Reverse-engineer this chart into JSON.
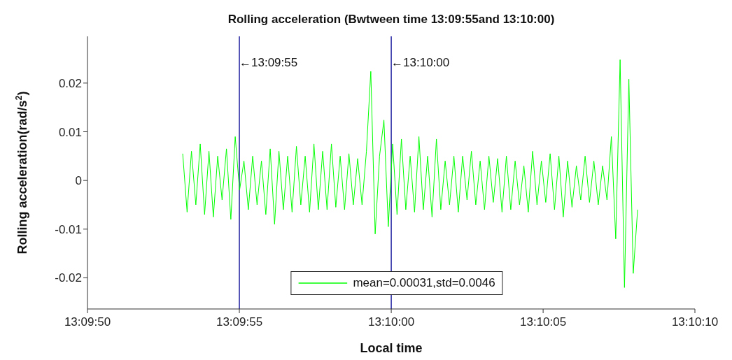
{
  "chart_data": {
    "type": "line",
    "title": "Rolling acceleration (Bwtween time 13:09:55and 13:10:00)",
    "xlabel": "Local time",
    "ylabel": "Rolling acceleration(rad/s$^{2}$)",
    "x": [
      13.16476,
      13.1648,
      13.16484,
      13.16488,
      13.16492,
      13.16496,
      13.165,
      13.16504,
      13.16508,
      13.16512,
      13.16516,
      13.1652,
      13.16524,
      13.16528,
      13.16532,
      13.16536,
      13.1654,
      13.16544,
      13.16548,
      13.16552,
      13.16556,
      13.1656,
      13.16564,
      13.16568,
      13.16572,
      13.16576,
      13.1658,
      13.16584,
      13.16588,
      13.16592,
      13.16596,
      13.166,
      13.16604,
      13.16608,
      13.16612,
      13.16616,
      13.1662,
      13.16624,
      13.16628,
      13.16632,
      13.16636,
      13.1664,
      13.16644,
      13.16648,
      13.16652,
      13.16656,
      13.1666,
      13.16664,
      13.16668,
      13.16672,
      13.16676,
      13.1668,
      13.16684,
      13.16688,
      13.16692,
      13.16696,
      13.167,
      13.16704,
      13.16708,
      13.16712,
      13.16716,
      13.1672,
      13.16724,
      13.16728,
      13.16732,
      13.16736,
      13.1674,
      13.16744,
      13.16748,
      13.16752,
      13.16756,
      13.1676,
      13.16764,
      13.16768,
      13.16772,
      13.16776,
      13.1678,
      13.16784,
      13.16788,
      13.16792,
      13.16796,
      13.168,
      13.16804,
      13.16808,
      13.16812,
      13.16816,
      13.1682,
      13.16824,
      13.16828,
      13.16832,
      13.16836,
      13.1684,
      13.16844,
      13.16848,
      13.16852,
      13.16856,
      13.1686,
      13.16864,
      13.16868,
      13.16872,
      13.16876,
      13.1688,
      13.16884,
      13.16888,
      13.16892
    ],
    "series": [
      {
        "name": "mean=0.00031,std=0.0046",
        "color": "#00ff00",
        "values": [
          0.0055,
          -0.0065,
          0.006,
          -0.005,
          0.0075,
          -0.007,
          0.006,
          -0.0075,
          0.005,
          -0.004,
          0.0065,
          -0.008,
          0.009,
          -0.002,
          0.004,
          -0.006,
          0.005,
          -0.005,
          0.004,
          -0.007,
          0.0065,
          -0.009,
          0.006,
          -0.006,
          0.005,
          -0.0065,
          0.007,
          -0.005,
          0.005,
          -0.0065,
          0.0075,
          -0.006,
          0.006,
          -0.006,
          0.0075,
          -0.0055,
          0.005,
          -0.006,
          0.0055,
          -0.005,
          0.0045,
          -0.005,
          0.006,
          0.0224,
          -0.011,
          0.005,
          0.0124,
          -0.0095,
          0.0075,
          -0.007,
          0.0085,
          -0.006,
          0.005,
          -0.0065,
          0.009,
          -0.006,
          0.005,
          -0.0075,
          0.0085,
          -0.006,
          0.004,
          -0.005,
          0.005,
          -0.0065,
          0.005,
          -0.004,
          0.006,
          -0.005,
          0.004,
          -0.006,
          0.005,
          -0.0045,
          0.0045,
          -0.0065,
          0.005,
          -0.006,
          0.004,
          -0.005,
          0.003,
          -0.0065,
          0.006,
          -0.005,
          0.004,
          -0.0045,
          0.0055,
          -0.006,
          0.005,
          -0.0075,
          0.004,
          -0.0055,
          0.003,
          -0.004,
          0.005,
          -0.0045,
          0.004,
          -0.005,
          0.003,
          -0.004,
          0.009,
          -0.012,
          0.0248,
          -0.022,
          0.0208,
          -0.0191,
          -0.006
        ]
      }
    ],
    "xlim": [
      13.163889,
      13.169444
    ],
    "xticks": [
      {
        "value": 13.163889,
        "label": "13:09:50"
      },
      {
        "value": 13.165278,
        "label": "13:09:55"
      },
      {
        "value": 13.166667,
        "label": "13:10:00"
      },
      {
        "value": 13.168056,
        "label": "13:10:05"
      },
      {
        "value": 13.169444,
        "label": "13:10:10"
      }
    ],
    "ylim": [
      -0.0264,
      0.0296
    ],
    "yticks": [
      -0.02,
      -0.01,
      0,
      0.01,
      0.02
    ],
    "ref_lines": [
      {
        "axis": "x",
        "value": 13.165278,
        "label": "←13:09:55",
        "color": "#2020a0"
      },
      {
        "axis": "x",
        "value": 13.166667,
        "label": "←13:10:00",
        "color": "#2020a0"
      }
    ],
    "legend": "bottom"
  }
}
